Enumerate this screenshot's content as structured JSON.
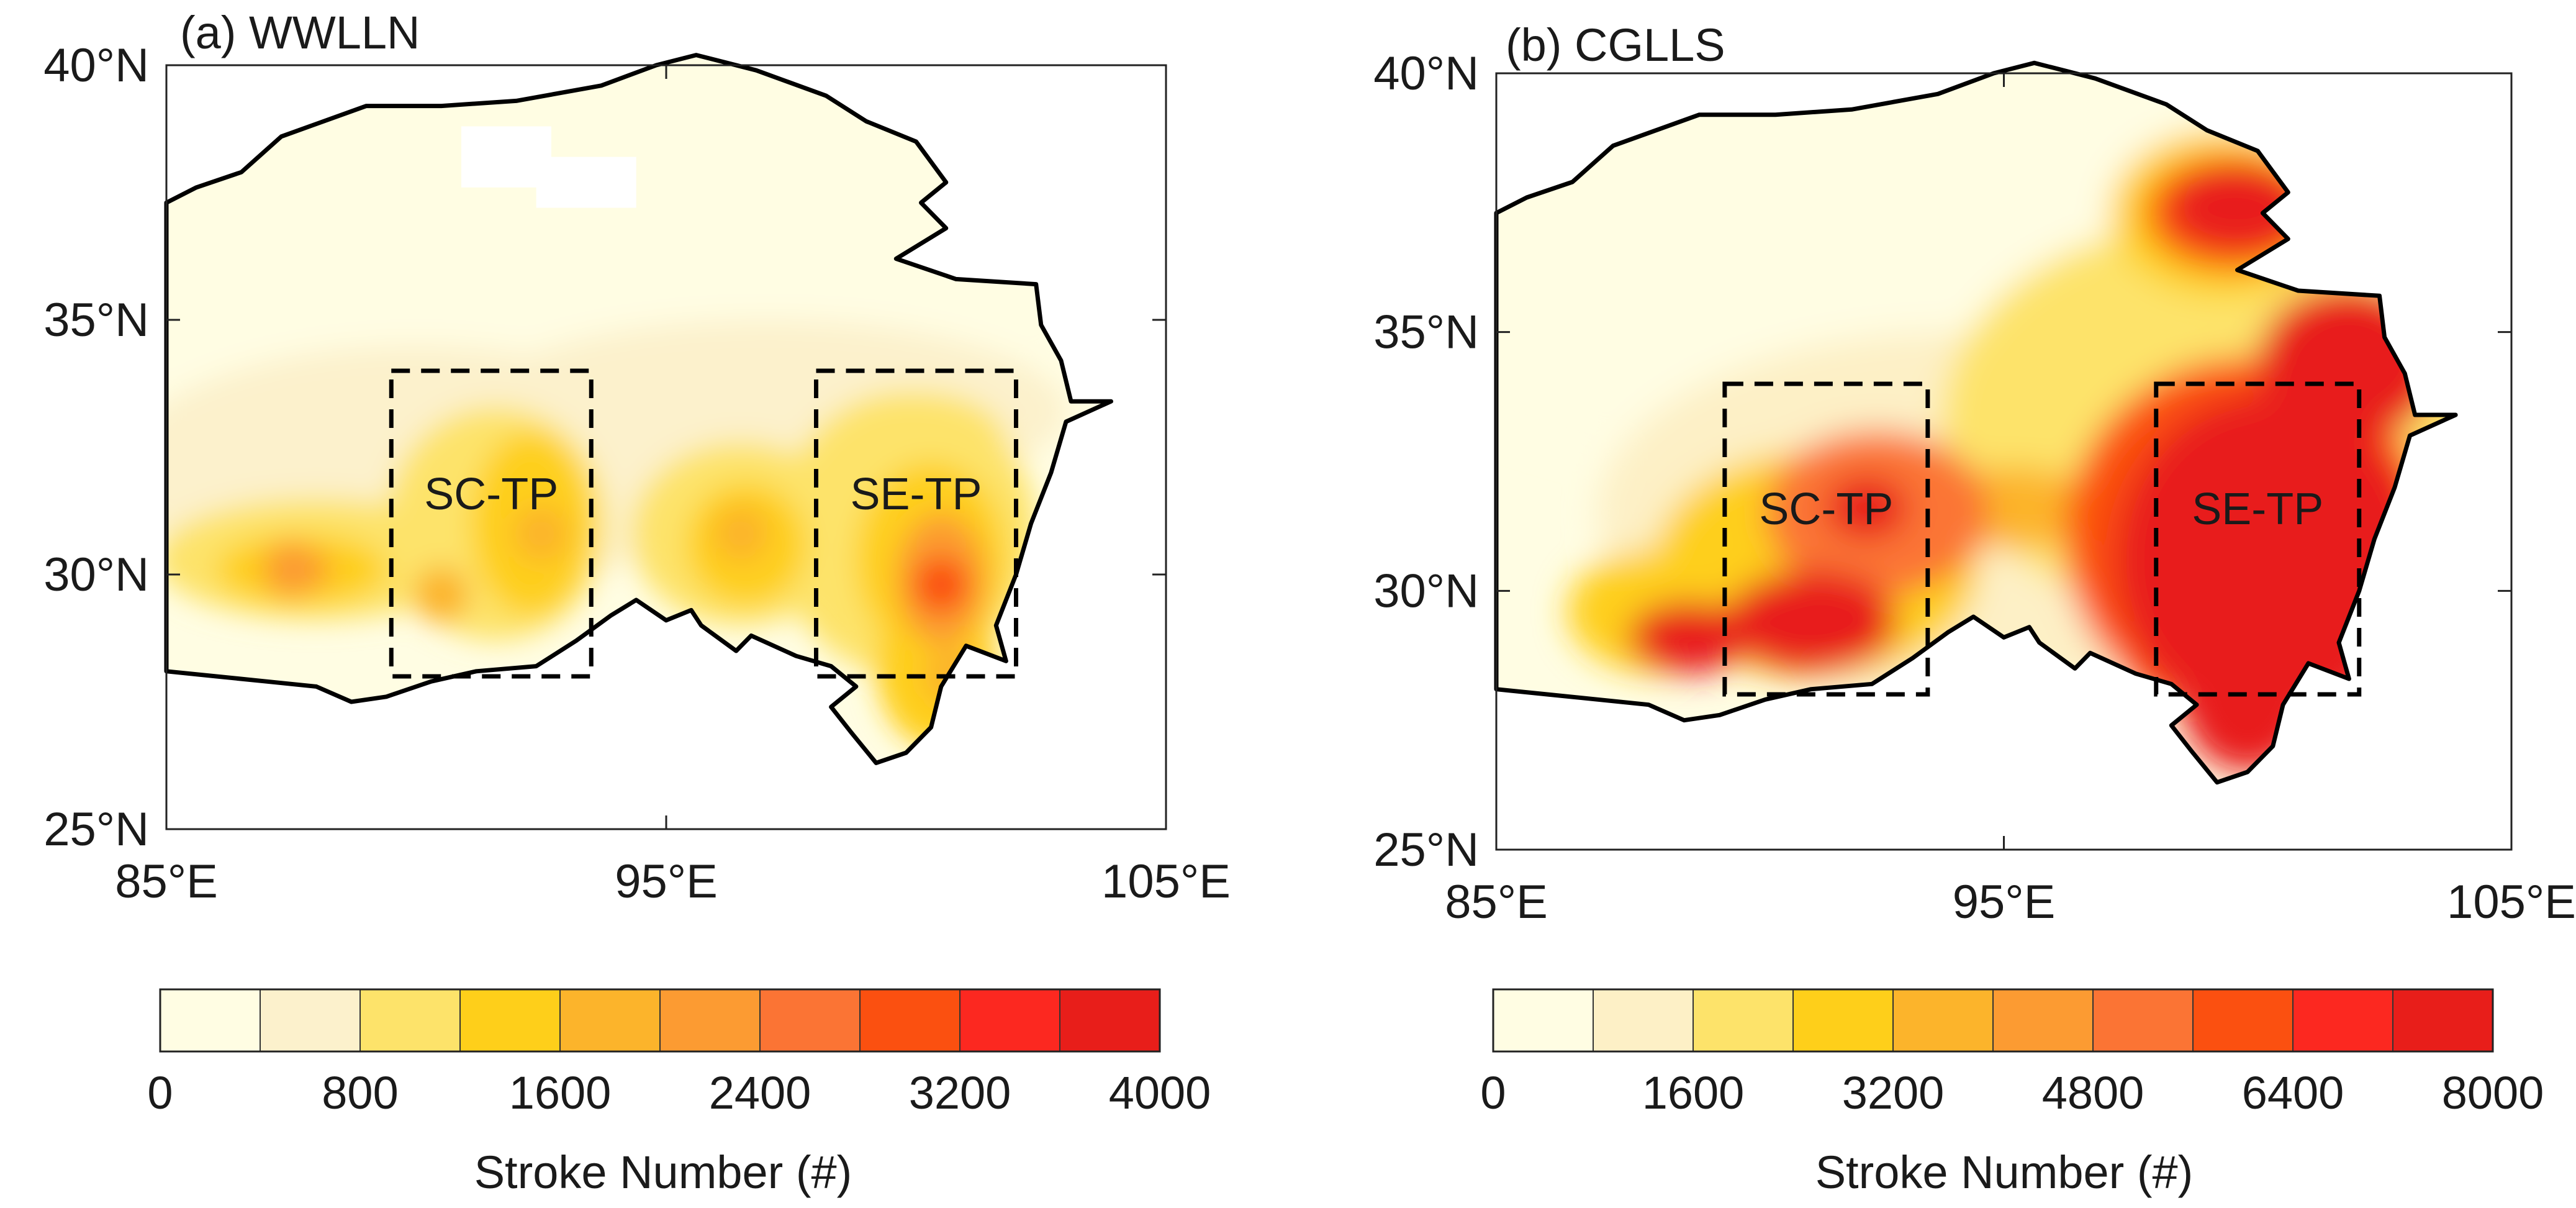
{
  "chart_data": [
    {
      "type": "heatmap",
      "panel": "a",
      "title": "(a) WWLLN",
      "x_ticks": [
        {
          "value": 85,
          "label": "85°E"
        },
        {
          "value": 95,
          "label": "95°E"
        },
        {
          "value": 105,
          "label": "105°E"
        }
      ],
      "y_ticks": [
        {
          "value": 25,
          "label": "25°N"
        },
        {
          "value": 30,
          "label": "30°N"
        },
        {
          "value": 35,
          "label": "35°N"
        },
        {
          "value": 40,
          "label": "40°N"
        }
      ],
      "xlim": [
        85,
        105
      ],
      "ylim": [
        25,
        40
      ],
      "colorbar": {
        "label": "Stroke Number (#)",
        "min": 0,
        "max": 4000,
        "bins": 10,
        "tick_values": [
          0,
          800,
          1600,
          2400,
          3200,
          4000
        ],
        "tick_labels": [
          "0",
          "800",
          "1600",
          "2400",
          "3200",
          "4000"
        ],
        "colors": [
          "#fffde3",
          "#fcf1cc",
          "#fde36a",
          "#fecf1a",
          "#fcb42b",
          "#fc9b32",
          "#fb7434",
          "#fb5010",
          "#fc2820",
          "#e81e1a"
        ]
      },
      "regions": [
        {
          "name": "SC-TP",
          "lon": [
            89.5,
            93.5
          ],
          "lat": [
            28,
            34
          ]
        },
        {
          "name": "SE-TP",
          "lon": [
            98,
            102
          ],
          "lat": [
            28,
            34
          ]
        }
      ],
      "hotspots": [
        {
          "lon": 87.5,
          "lat": 30.1,
          "level": 5
        },
        {
          "lon": 92.5,
          "lat": 30.8,
          "level": 4
        },
        {
          "lon": 90.5,
          "lat": 29.6,
          "level": 4
        },
        {
          "lon": 96.5,
          "lat": 30.8,
          "level": 4
        },
        {
          "lon": 100.5,
          "lat": 29.8,
          "level": 7
        },
        {
          "lon": 100.7,
          "lat": 28.0,
          "level": 4
        }
      ]
    },
    {
      "type": "heatmap",
      "panel": "b",
      "title": "(b) CGLLS",
      "x_ticks": [
        {
          "value": 85,
          "label": "85°E"
        },
        {
          "value": 95,
          "label": "95°E"
        },
        {
          "value": 105,
          "label": "105°E"
        }
      ],
      "y_ticks": [
        {
          "value": 25,
          "label": "25°N"
        },
        {
          "value": 30,
          "label": "30°N"
        },
        {
          "value": 35,
          "label": "35°N"
        },
        {
          "value": 40,
          "label": "40°N"
        }
      ],
      "xlim": [
        85,
        105
      ],
      "ylim": [
        25,
        40
      ],
      "colorbar": {
        "label": "Stroke Number (#)",
        "min": 0,
        "max": 8000,
        "bins": 10,
        "tick_values": [
          0,
          1600,
          3200,
          4800,
          6400,
          8000
        ],
        "tick_labels": [
          "0",
          "1600",
          "3200",
          "4800",
          "6400",
          "8000"
        ],
        "colors": [
          "#fffde3",
          "#fdf0c6",
          "#fde36a",
          "#fecf1a",
          "#fcb42b",
          "#fc9b32",
          "#fb7434",
          "#fb5010",
          "#fc2820",
          "#e81e1a"
        ]
      },
      "regions": [
        {
          "name": "SC-TP",
          "lon": [
            89.5,
            93.5
          ],
          "lat": [
            28,
            34
          ]
        },
        {
          "name": "SE-TP",
          "lon": [
            98,
            102
          ],
          "lat": [
            28,
            34
          ]
        }
      ],
      "hotspots": [
        {
          "lon": 90.5,
          "lat": 29.5,
          "level": 9
        },
        {
          "lon": 99.5,
          "lat": 31.0,
          "level": 9
        },
        {
          "lon": 99.8,
          "lat": 37.4,
          "level": 9
        },
        {
          "lon": 101.5,
          "lat": 33.8,
          "level": 9
        }
      ]
    }
  ]
}
